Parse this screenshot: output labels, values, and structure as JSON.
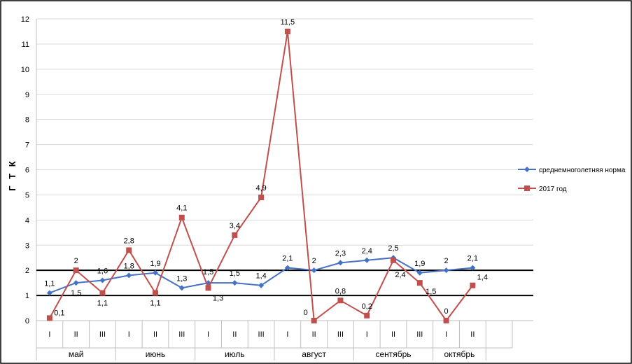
{
  "chart_data": {
    "type": "line",
    "ylabel": "Г Т К",
    "ylim": [
      0,
      12
    ],
    "yticks": [
      "0",
      "1",
      "2",
      "3",
      "4",
      "5",
      "6",
      "7",
      "8",
      "9",
      "10",
      "11",
      "12"
    ],
    "decades": [
      "I",
      "II",
      "III",
      "I",
      "II",
      "III",
      "I",
      "II",
      "III",
      "I",
      "II",
      "III",
      "I",
      "II",
      "III",
      "I",
      "II",
      ""
    ],
    "months": [
      {
        "label": "май",
        "span": 3
      },
      {
        "label": "июнь",
        "span": 3
      },
      {
        "label": "июль",
        "span": 3
      },
      {
        "label": "август",
        "span": 3
      },
      {
        "label": "сентябрь",
        "span": 3
      },
      {
        "label": "октябрь",
        "span": 2
      }
    ],
    "reference_lines": [
      1,
      2
    ],
    "series": [
      {
        "name": "среднемноголетняя норма",
        "color": "#4572C4",
        "marker": "diamond",
        "values": [
          1.1,
          1.5,
          1.6,
          1.8,
          1.9,
          1.3,
          1.5,
          1.5,
          1.4,
          2.1,
          2,
          2.3,
          2.4,
          2.5,
          1.9,
          2,
          2.1
        ],
        "labels": [
          "1,1",
          "1,5",
          "1,6",
          "1,8",
          "1,9",
          "1,3",
          "1,5",
          "1,5",
          "1,4",
          "2,1",
          "2",
          "2,3",
          "2,4",
          "2,5",
          "1,9",
          "2",
          "2,1"
        ]
      },
      {
        "name": "2017 год",
        "color": "#C0504D",
        "marker": "square",
        "values": [
          0.1,
          2,
          1.1,
          2.8,
          1.1,
          4.1,
          1.3,
          3.4,
          4.9,
          11.5,
          0,
          0.8,
          0.2,
          2.4,
          1.5,
          0,
          1.4
        ],
        "labels": [
          "0,1",
          "2",
          "1,1",
          "2,8",
          "1,1",
          "4,1",
          "1,3",
          "3,4",
          "4,9",
          "11,5",
          "0",
          "0,8",
          "0,2",
          "2,4",
          "1,5",
          "0",
          "1,4"
        ]
      }
    ],
    "legend_position": "right"
  }
}
